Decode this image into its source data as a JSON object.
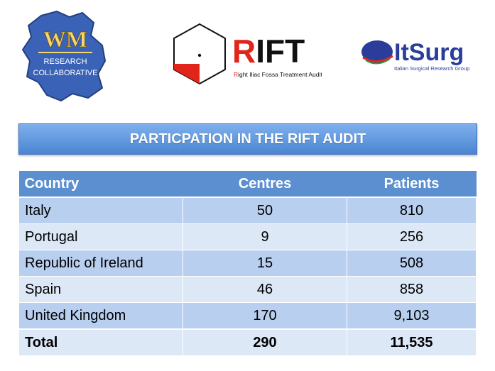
{
  "logos": {
    "wm": {
      "line1": "WM",
      "line2": "RESEARCH",
      "line3": "COLLABORATIVE",
      "colors": {
        "shape": "#3a63b8",
        "text": "#f5d76e"
      }
    },
    "rift": {
      "name": "RIFT",
      "subtitle_first": "R",
      "subtitle_rest": "ight Iliac Fossa Treatment Audit",
      "colors": {
        "accent": "#e1251b"
      }
    },
    "itsurg": {
      "name_part1": "It",
      "name_part2": "Surg",
      "subtitle": "Italian Surgical Research Group",
      "colors": {
        "brand": "#2a3d9b"
      }
    }
  },
  "banner": {
    "title": "PARTICPATION IN THE RIFT AUDIT"
  },
  "table": {
    "headers": [
      "Country",
      "Centres",
      "Patients"
    ],
    "rows": [
      {
        "country": "Italy",
        "centres": "50",
        "patients": "810"
      },
      {
        "country": "Portugal",
        "centres": "9",
        "patients": "256"
      },
      {
        "country": "Republic of Ireland",
        "centres": "15",
        "patients": "508"
      },
      {
        "country": "Spain",
        "centres": "46",
        "patients": "858"
      },
      {
        "country": "United Kingdom",
        "centres": "170",
        "patients": "9,103"
      }
    ],
    "total": {
      "country": "Total",
      "centres": "290",
      "patients": "11,535"
    }
  }
}
